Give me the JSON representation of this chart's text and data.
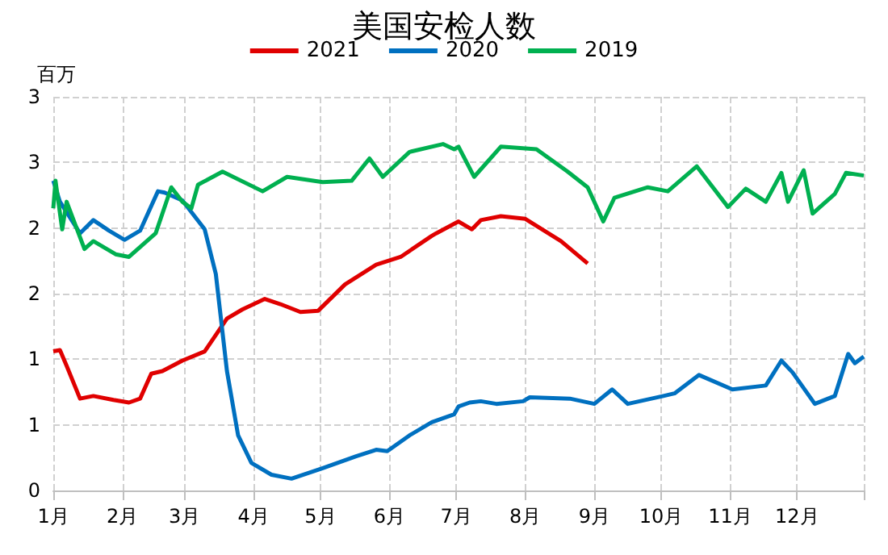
{
  "chart_data": {
    "type": "line",
    "title": "美国安检人数",
    "ylabel": "百万",
    "legend": "top",
    "grid": true,
    "line_style": "solid",
    "marker": "none",
    "xlim": [
      "--01-01",
      "--12-31"
    ],
    "xticks": [
      {
        "value": "--01-01",
        "label": "1月"
      },
      {
        "value": "--02-01",
        "label": "2月"
      },
      {
        "value": "--03-01",
        "label": "3月"
      },
      {
        "value": "--04-01",
        "label": "4月"
      },
      {
        "value": "--05-01",
        "label": "5月"
      },
      {
        "value": "--06-01",
        "label": "6月"
      },
      {
        "value": "--07-01",
        "label": "7月"
      },
      {
        "value": "--08-01",
        "label": "8月"
      },
      {
        "value": "--09-01",
        "label": "9月"
      },
      {
        "value": "--10-01",
        "label": "10月"
      },
      {
        "value": "--11-01",
        "label": "11月"
      },
      {
        "value": "--12-01",
        "label": "12月"
      },
      {
        "value": "--12-31",
        "label": null
      }
    ],
    "ylim": [
      0,
      3
    ],
    "yticks": [
      0,
      {
        "value": 0.5,
        "label": "1"
      },
      1,
      {
        "value": 1.5,
        "label": "2"
      },
      2,
      {
        "value": 2.5,
        "label": "3"
      },
      3
    ],
    "series": [
      {
        "name": "2021",
        "color": "#e00000",
        "x": [
          "--01-01",
          "--01-04",
          "--01-07",
          "--01-13",
          "--01-19",
          "--01-28",
          "--02-04",
          "--02-09",
          "--02-14",
          "--02-19",
          "--02-28",
          "--03-10",
          "--03-20",
          "--03-27",
          "--04-06",
          "--04-13",
          "--04-22",
          "--04-30",
          "--05-12",
          "--05-26",
          "--06-06",
          "--06-20",
          "--06-22",
          "--07-02",
          "--07-08",
          "--07-12",
          "--07-21",
          "--08-01",
          "--08-17",
          "--08-29"
        ],
        "values": [
          1.06,
          1.07,
          0.95,
          0.7,
          0.72,
          0.69,
          0.67,
          0.7,
          0.89,
          0.91,
          0.99,
          1.06,
          1.31,
          1.38,
          1.46,
          1.42,
          1.36,
          1.37,
          1.57,
          1.72,
          1.78,
          1.94,
          1.96,
          2.05,
          1.99,
          2.06,
          2.09,
          2.07,
          1.9,
          1.73
        ]
      },
      {
        "name": "2020",
        "color": "#0070c0",
        "x": [
          "--01-01",
          "--01-04",
          "--01-13",
          "--01-19",
          "--01-26",
          "--02-02",
          "--02-09",
          "--02-17",
          "--02-20",
          "--02-28",
          "--03-10",
          "--03-15",
          "--03-20",
          "--03-25",
          "--03-31",
          "--04-09",
          "--04-18",
          "--05-02",
          "--05-17",
          "--05-26",
          "--05-31",
          "--06-10",
          "--06-20",
          "--06-30",
          "--07-02",
          "--07-07",
          "--07-12",
          "--07-19",
          "--07-31",
          "--08-03",
          "--08-21",
          "--09-01",
          "--09-09",
          "--09-16",
          "--10-02",
          "--10-07",
          "--10-18",
          "--11-02",
          "--11-17",
          "--11-24",
          "--11-29",
          "--12-09",
          "--12-18",
          "--12-24",
          "--12-27",
          "--12-31"
        ],
        "values": [
          2.36,
          2.2,
          1.96,
          2.06,
          1.98,
          1.91,
          1.98,
          2.28,
          2.27,
          2.21,
          1.99,
          1.65,
          0.91,
          0.42,
          0.21,
          0.12,
          0.09,
          0.17,
          0.26,
          0.31,
          0.3,
          0.42,
          0.52,
          0.58,
          0.64,
          0.67,
          0.68,
          0.66,
          0.68,
          0.71,
          0.7,
          0.66,
          0.77,
          0.66,
          0.72,
          0.74,
          0.88,
          0.77,
          0.8,
          0.99,
          0.9,
          0.66,
          0.72,
          1.04,
          0.97,
          1.02
        ]
      },
      {
        "name": "2019",
        "color": "#00b050",
        "x": [
          "--01-01",
          "--01-02",
          "--01-05",
          "--01-07",
          "--01-15",
          "--01-19",
          "--01-29",
          "--02-04",
          "--02-16",
          "--02-23",
          "--02-28",
          "--03-04",
          "--03-07",
          "--03-18",
          "--04-05",
          "--04-16",
          "--05-02",
          "--05-15",
          "--05-23",
          "--05-29",
          "--06-10",
          "--06-25",
          "--06-30",
          "--07-02",
          "--07-09",
          "--07-21",
          "--08-06",
          "--08-20",
          "--08-29",
          "--09-05",
          "--09-10",
          "--09-25",
          "--10-04",
          "--10-17",
          "--10-31",
          "--11-08",
          "--11-17",
          "--11-24",
          "--11-27",
          "--12-04",
          "--12-08",
          "--12-18",
          "--12-23",
          "--12-31"
        ],
        "values": [
          2.15,
          2.36,
          1.99,
          2.2,
          1.84,
          1.9,
          1.8,
          1.78,
          1.96,
          2.31,
          2.2,
          2.15,
          2.33,
          2.43,
          2.28,
          2.39,
          2.35,
          2.36,
          2.53,
          2.39,
          2.58,
          2.64,
          2.6,
          2.62,
          2.39,
          2.62,
          2.6,
          2.43,
          2.31,
          2.05,
          2.23,
          2.31,
          2.28,
          2.47,
          2.16,
          2.3,
          2.2,
          2.42,
          2.2,
          2.44,
          2.11,
          2.26,
          2.42,
          2.4
        ]
      }
    ]
  }
}
